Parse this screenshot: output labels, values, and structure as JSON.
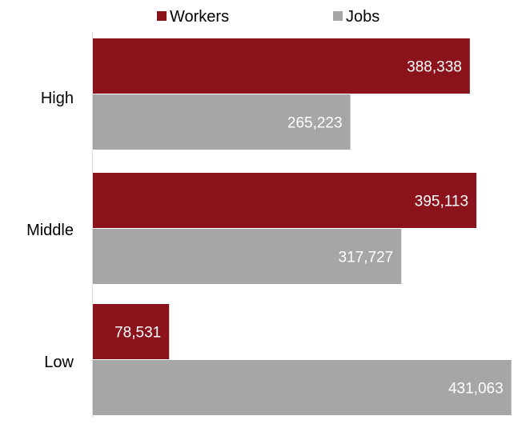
{
  "chart_data": {
    "type": "bar",
    "orientation": "horizontal",
    "categories": [
      "High",
      "Middle",
      "Low"
    ],
    "series": [
      {
        "name": "Workers",
        "color": "#8b141c",
        "values": [
          388338,
          395113,
          78531
        ],
        "labels": [
          "388,338",
          "395,113",
          "78,531"
        ]
      },
      {
        "name": "Jobs",
        "color": "#a6a6a6",
        "values": [
          265223,
          317727,
          431063
        ],
        "labels": [
          "265,223",
          "317,727",
          "431,063"
        ]
      }
    ],
    "legend_position": "top",
    "grid": false
  }
}
